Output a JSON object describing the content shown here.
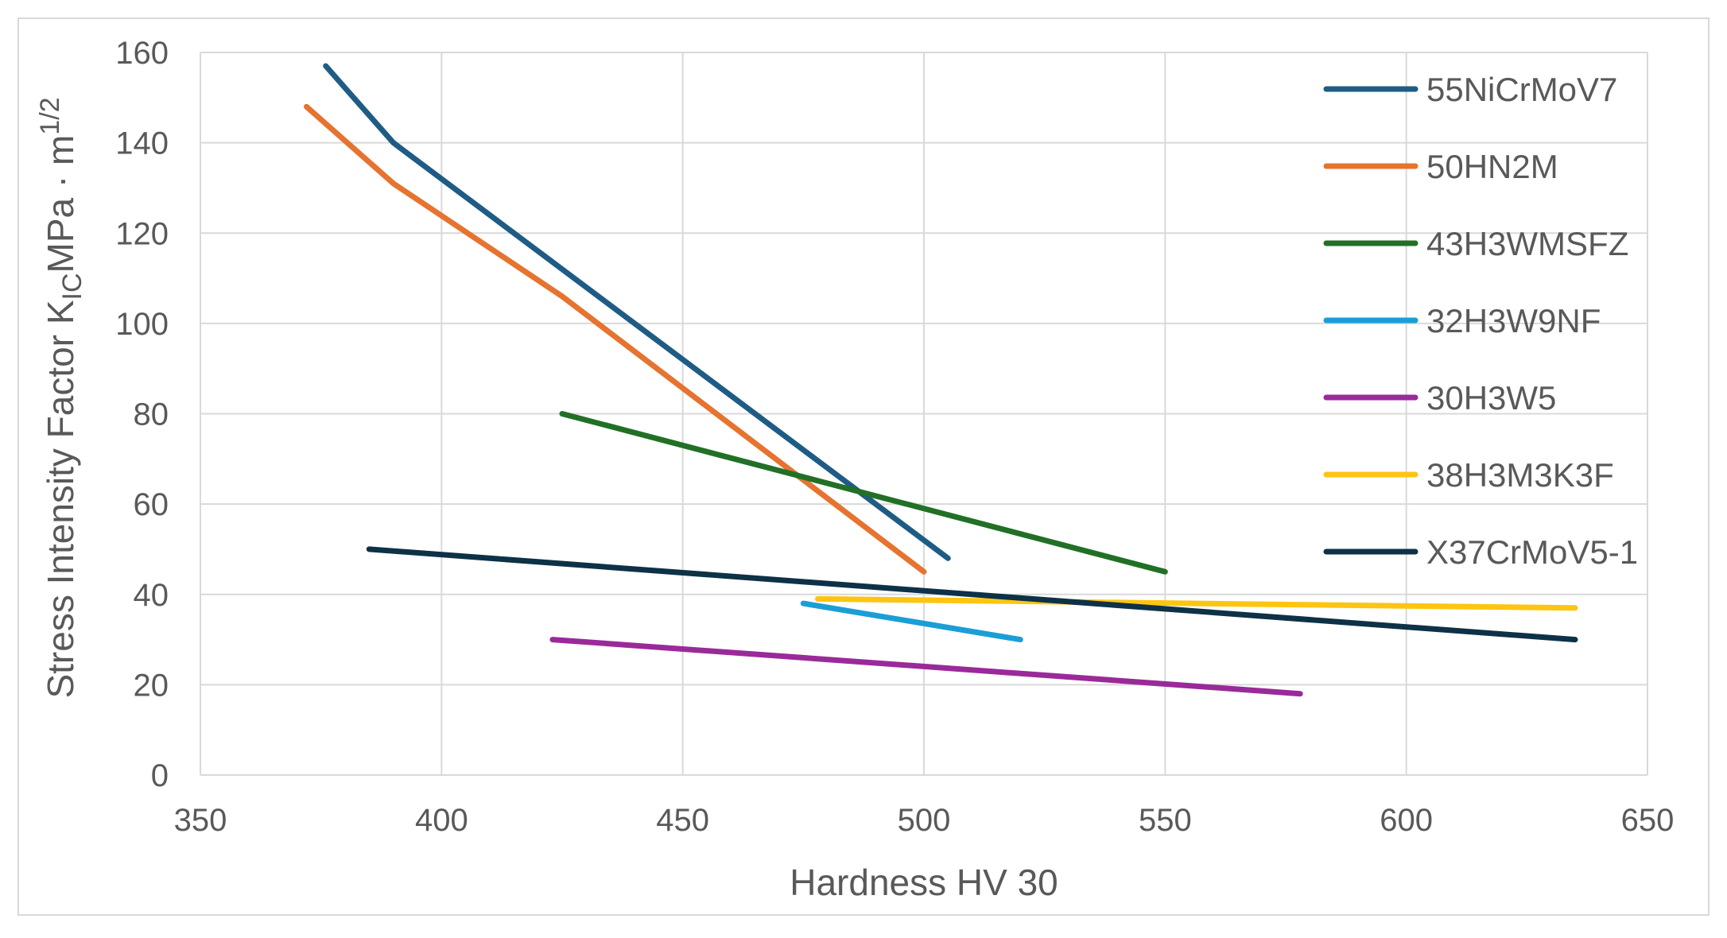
{
  "chart_data": {
    "type": "line",
    "title": "",
    "xlabel": "Hardness HV 30",
    "ylabel": {
      "main": "Stress Intensity Factor K",
      "subscript": "IC",
      "unit": "MPa · m",
      "superscript": "1/2"
    },
    "xlim": [
      350,
      650
    ],
    "ylim": [
      0,
      160
    ],
    "x_ticks": [
      "350",
      "400",
      "450",
      "500",
      "550",
      "600",
      "650"
    ],
    "y_ticks": [
      "0",
      "20",
      "40",
      "60",
      "80",
      "100",
      "120",
      "140",
      "160"
    ],
    "grid": true,
    "legend_position": "right",
    "series": [
      {
        "name": "55NiCrMoV7",
        "color": "#1f5c85",
        "x": [
          376,
          390,
          505
        ],
        "y": [
          157,
          140,
          48
        ]
      },
      {
        "name": "50HN2M",
        "color": "#e6732f",
        "x": [
          372,
          390,
          425,
          500
        ],
        "y": [
          148,
          131,
          106,
          45
        ]
      },
      {
        "name": "43H3WMSFZ",
        "color": "#217026",
        "x": [
          425,
          550
        ],
        "y": [
          80,
          45
        ]
      },
      {
        "name": "32H3W9NF",
        "color": "#1b9ed6",
        "x": [
          475,
          520
        ],
        "y": [
          38,
          30
        ]
      },
      {
        "name": "30H3W5",
        "color": "#9a2a9a",
        "x": [
          423,
          578
        ],
        "y": [
          30,
          18
        ]
      },
      {
        "name": "38H3M3K3F",
        "color": "#fdc512",
        "x": [
          478,
          635
        ],
        "y": [
          39,
          37
        ]
      },
      {
        "name": "X37CrMoV5-1",
        "color": "#0d3147",
        "x": [
          385,
          635
        ],
        "y": [
          50,
          30
        ]
      }
    ]
  }
}
